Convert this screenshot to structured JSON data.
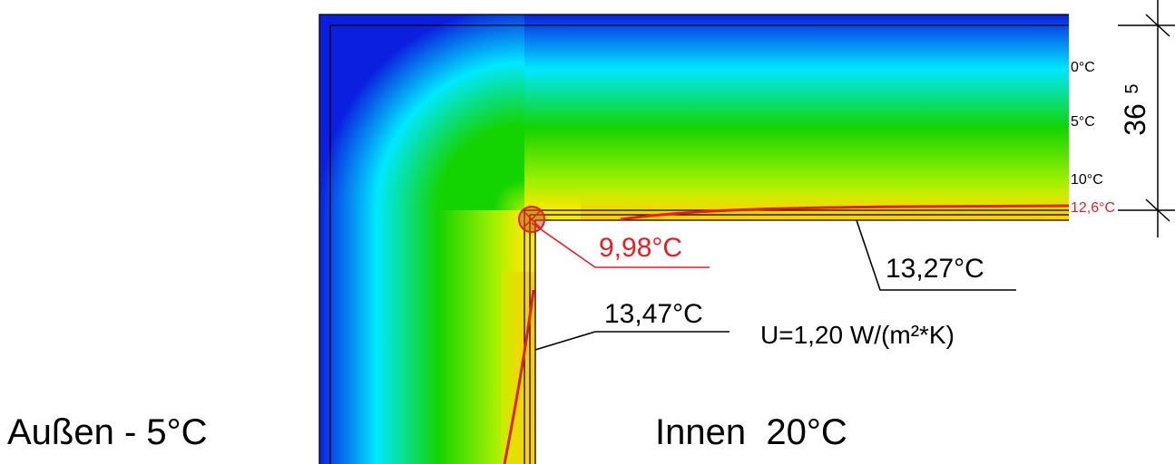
{
  "labels": {
    "outside": "Außen - 5°C",
    "inside": "Innen  20°C",
    "corner_temp": "9,98°C",
    "wall_temp": "13,47°C",
    "ceiling_temp": "13,27°C",
    "u_value": "U=1,20 W/(m²*K)"
  },
  "isotherms": {
    "t0": "0°C",
    "t5": "5°C",
    "t10": "10°C",
    "t12": "12,6°C"
  },
  "dimensions": {
    "thickness": "36",
    "layer": "5"
  },
  "colors": {
    "cold": "#0a1fe0",
    "cyan": "#00e8ff",
    "green": "#14d400",
    "yellow": "#ffe800",
    "orange": "#ffb300",
    "highlight": "#e31e24",
    "line": "#000000"
  }
}
